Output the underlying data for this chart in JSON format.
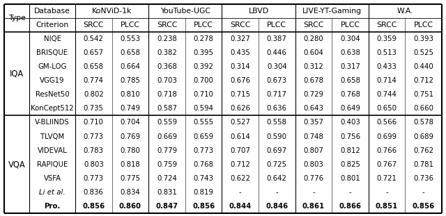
{
  "iqa_data": [
    [
      "NIQE",
      "0.542",
      "0.553",
      "0.238",
      "0.278",
      "0.327",
      "0.387",
      "0.280",
      "0.304",
      "0.359",
      "0.393"
    ],
    [
      "BRISQUE",
      "0.657",
      "0.658",
      "0.382",
      "0.395",
      "0.435",
      "0.446",
      "0.604",
      "0.638",
      "0.513",
      "0.525"
    ],
    [
      "GM-LOG",
      "0.658",
      "0.664",
      "0.368",
      "0.392",
      "0.314",
      "0.304",
      "0.312",
      "0.317",
      "0.433",
      "0.440"
    ],
    [
      "VGG19",
      "0.774",
      "0.785",
      "0.703",
      "0.700",
      "0.676",
      "0.673",
      "0.678",
      "0.658",
      "0.714",
      "0.712"
    ],
    [
      "ResNet50",
      "0.802",
      "0.810",
      "0.718",
      "0.710",
      "0.715",
      "0.717",
      "0.729",
      "0.768",
      "0.744",
      "0.751"
    ],
    [
      "KonCept512",
      "0.735",
      "0.749",
      "0.587",
      "0.594",
      "0.626",
      "0.636",
      "0.643",
      "0.649",
      "0.650",
      "0.660"
    ]
  ],
  "vqa_data": [
    [
      "V-BLIINDS",
      "0.710",
      "0.704",
      "0.559",
      "0.555",
      "0.527",
      "0.558",
      "0.357",
      "0.403",
      "0.566",
      "0.578"
    ],
    [
      "TLVQM",
      "0.773",
      "0.769",
      "0.669",
      "0.659",
      "0.614",
      "0.590",
      "0.748",
      "0.756",
      "0.699",
      "0.689"
    ],
    [
      "VIDEVAL",
      "0.783",
      "0.780",
      "0.779",
      "0.773",
      "0.707",
      "0.697",
      "0.807",
      "0.812",
      "0.766",
      "0.762"
    ],
    [
      "RAPIQUE",
      "0.803",
      "0.818",
      "0.759",
      "0.768",
      "0.712",
      "0.725",
      "0.803",
      "0.825",
      "0.767",
      "0.781"
    ],
    [
      "VSFA",
      "0.773",
      "0.775",
      "0.724",
      "0.743",
      "0.622",
      "0.642",
      "0.776",
      "0.801",
      "0.721",
      "0.736"
    ],
    [
      "Li et al.",
      "0.836",
      "0.834",
      "0.831",
      "0.819",
      "-",
      "-",
      "-",
      "-",
      "-",
      "-"
    ],
    [
      "Pro.",
      "0.856",
      "0.860",
      "0.847",
      "0.856",
      "0.844",
      "0.846",
      "0.861",
      "0.866",
      "0.851",
      "0.856"
    ]
  ],
  "bold_rows": [
    "Pro."
  ],
  "italic_rows": [
    "Li et al."
  ],
  "db_groups": [
    "KoNViD-1k",
    "YouTube-UGC",
    "LBVD",
    "LIVE-YT-Gaming",
    "W.A."
  ],
  "figsize": [
    6.4,
    3.11
  ],
  "dpi": 100
}
